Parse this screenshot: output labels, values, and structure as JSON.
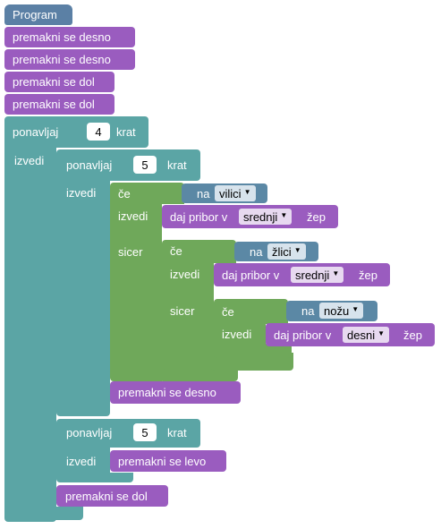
{
  "colors": {
    "event": "#5b80a5",
    "motion": "#9a5cbf",
    "loop": "#5ba5a5",
    "logic": "#6fa85a",
    "sensor": "#5b88a5"
  },
  "program": {
    "title": "Program",
    "steps": [
      "premakni se desno",
      "premakni se desno",
      "premakni se dol",
      "premakni se dol"
    ]
  },
  "outer_loop": {
    "prefix": "ponavljaj",
    "count": "4",
    "suffix": "krat",
    "body_label": "izvedi",
    "inner_loop1": {
      "prefix": "ponavljaj",
      "count": "5",
      "suffix": "krat",
      "body_label": "izvedi",
      "if1": {
        "cond_label": "če",
        "cond_prefix": "na",
        "cond_value": "vilici",
        "do_label": "izvedi",
        "action_prefix": "daj pribor v",
        "action_value": "srednji",
        "action_suffix": "žep",
        "else_label": "sicer",
        "if2": {
          "cond_label": "če",
          "cond_prefix": "na",
          "cond_value": "žlici",
          "do_label": "izvedi",
          "action_prefix": "daj pribor v",
          "action_value": "srednji",
          "action_suffix": "žep",
          "else_label": "sicer",
          "if3": {
            "cond_label": "če",
            "cond_prefix": "na",
            "cond_value": "nožu",
            "do_label": "izvedi",
            "action_prefix": "daj pribor v",
            "action_value": "desni",
            "action_suffix": "žep"
          }
        }
      },
      "after": "premakni se desno"
    },
    "inner_loop2": {
      "prefix": "ponavljaj",
      "count": "5",
      "suffix": "krat",
      "body_label": "izvedi",
      "action": "premakni se levo"
    },
    "after": "premakni se dol"
  }
}
